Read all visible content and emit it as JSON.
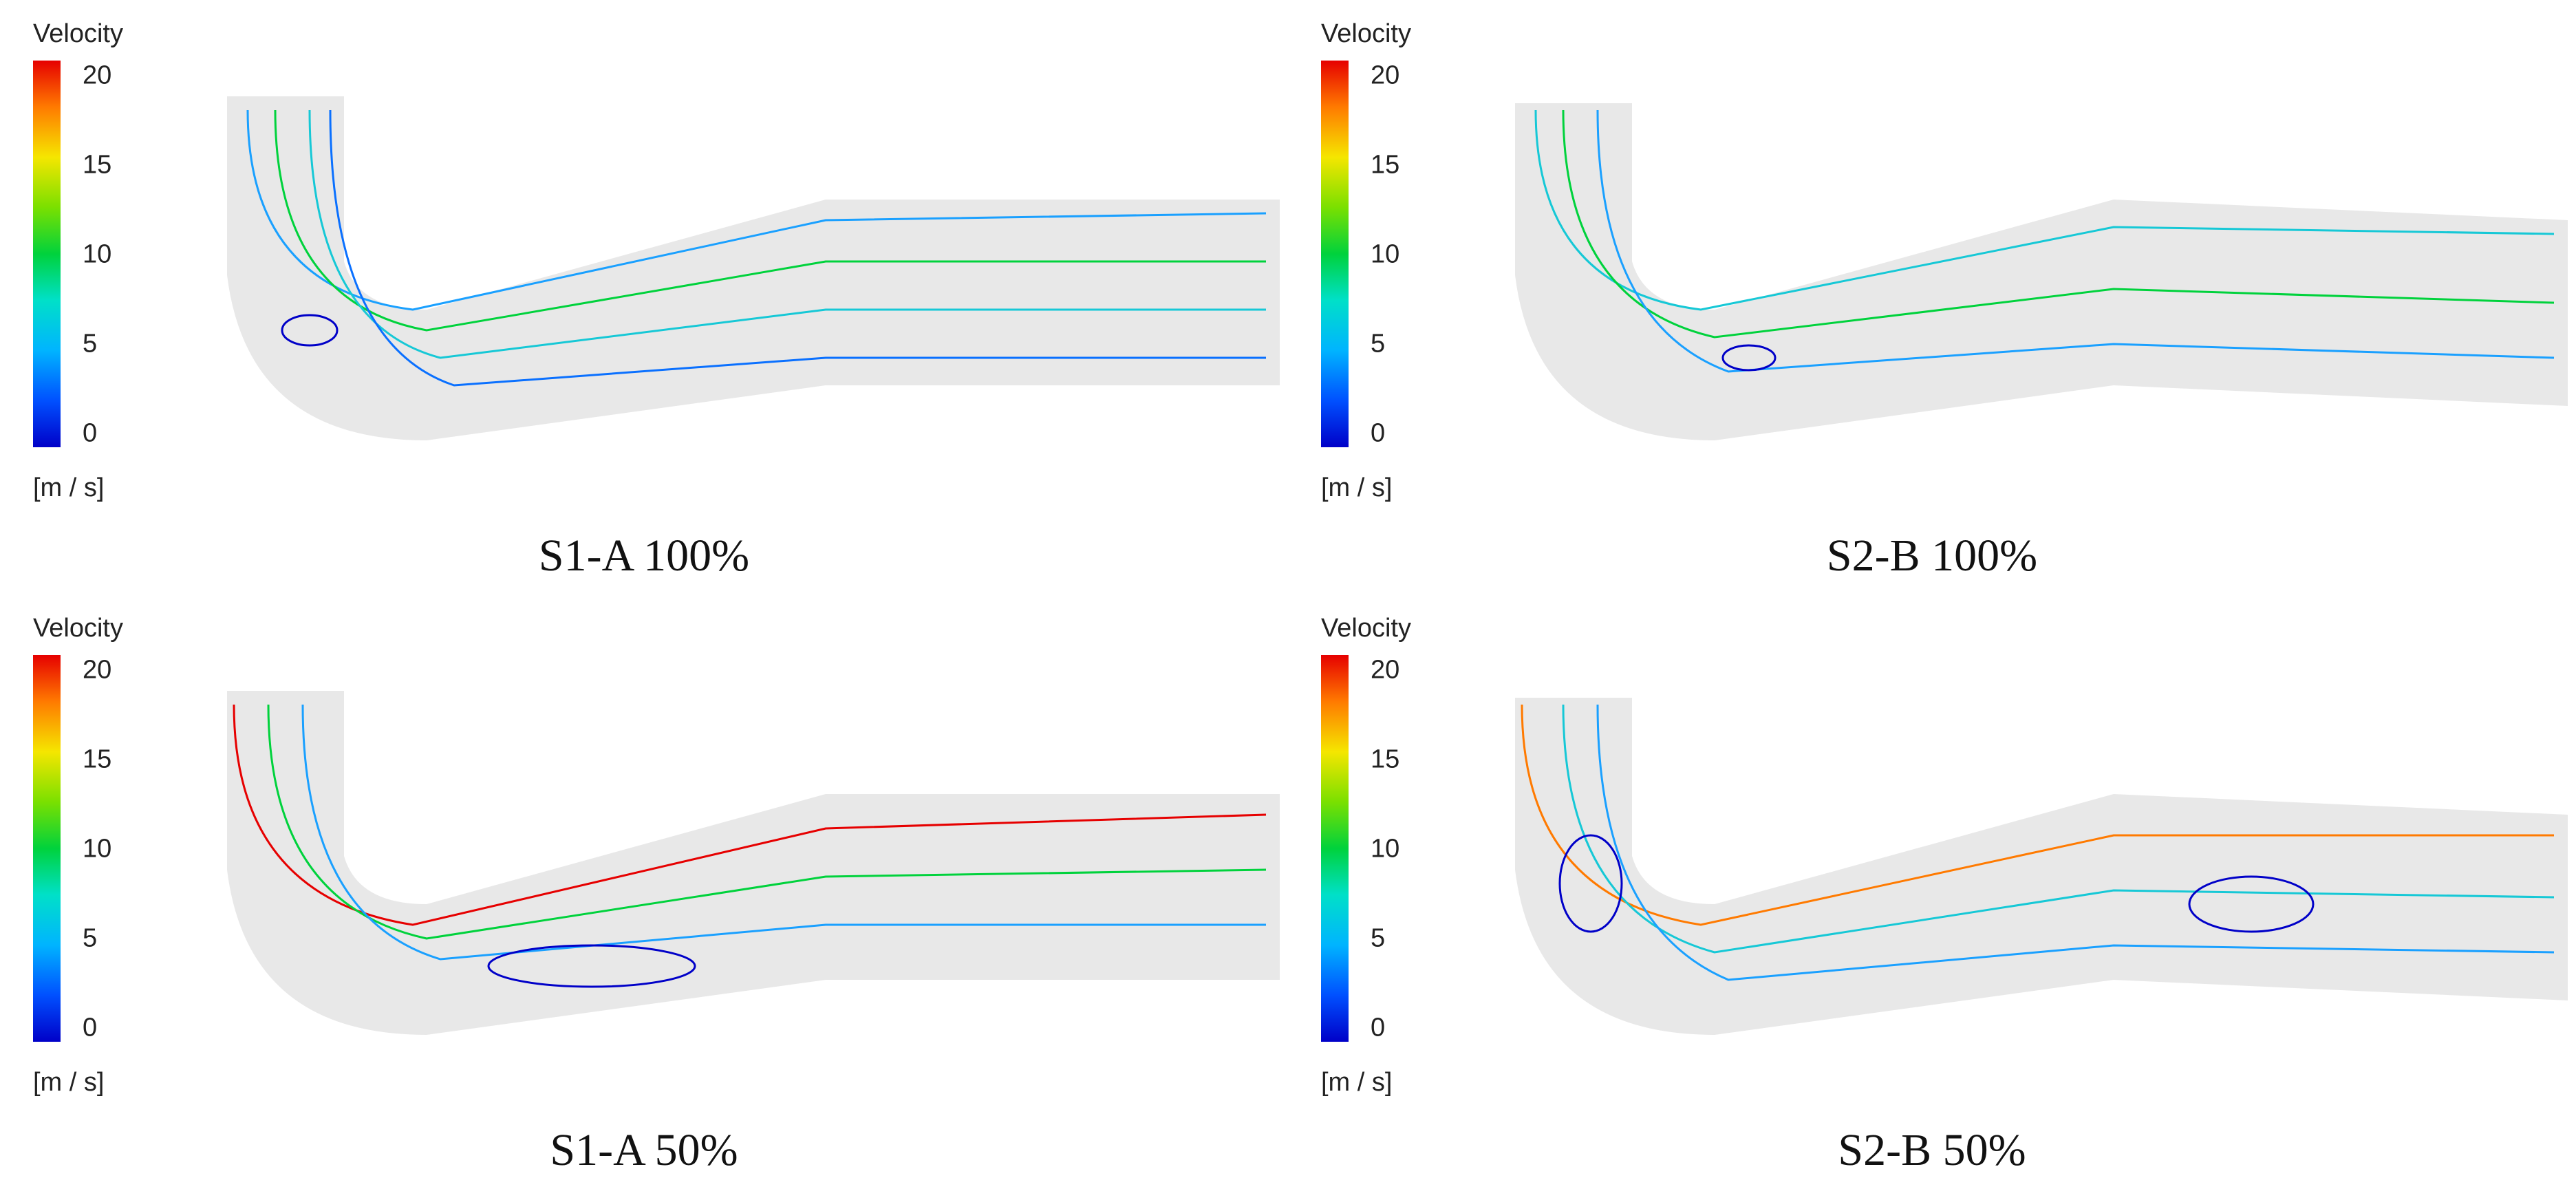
{
  "panels": [
    {
      "caption": "S1-A 100%",
      "legend": {
        "title": "Velocity",
        "unit": "[m / s]",
        "ticks": [
          "20",
          "15",
          "10",
          "5",
          "0"
        ]
      }
    },
    {
      "caption": "S2-B 100%",
      "legend": {
        "title": "Velocity",
        "unit": "[m / s]",
        "ticks": [
          "20",
          "15",
          "10",
          "5",
          "0"
        ]
      }
    },
    {
      "caption": "S1-A 50%",
      "legend": {
        "title": "Velocity",
        "unit": "[m / s]",
        "ticks": [
          "20",
          "15",
          "10",
          "5",
          "0"
        ]
      }
    },
    {
      "caption": "S2-B 50%",
      "legend": {
        "title": "Velocity",
        "unit": "[m / s]",
        "ticks": [
          "20",
          "15",
          "10",
          "5",
          "0"
        ]
      }
    }
  ],
  "colors": {
    "high": "#e60000",
    "mid": "#00d23c",
    "low": "#0000c8",
    "casing": "#e8e8e8"
  }
}
